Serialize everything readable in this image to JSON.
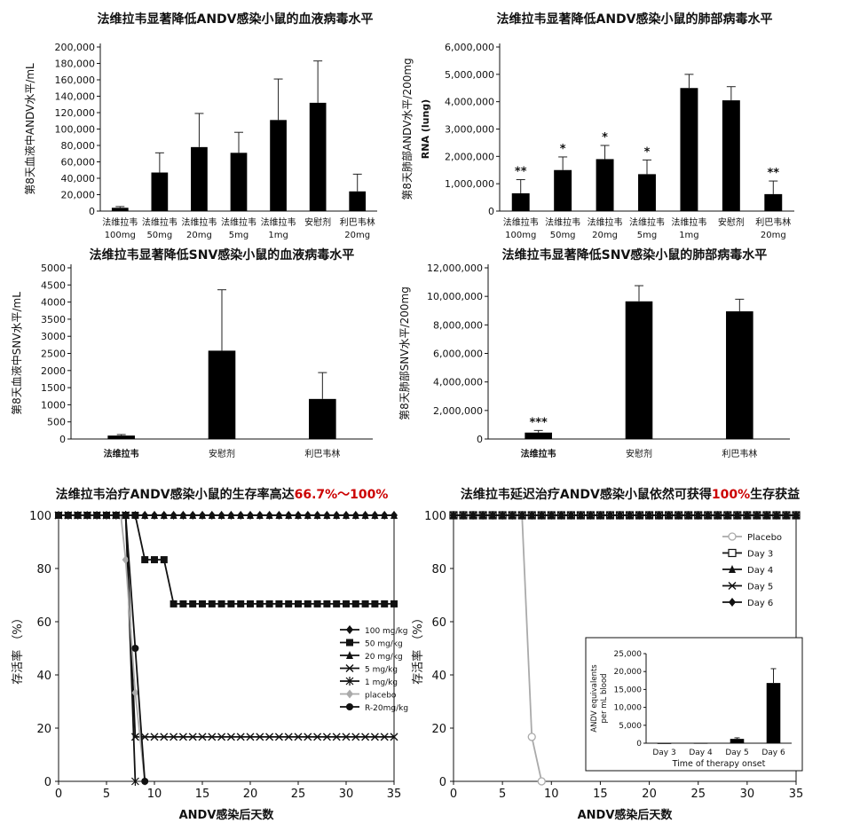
{
  "chart_data": [
    {
      "type": "bar",
      "title": "法维拉韦显著降低ANDV感染小鼠的血液病毒水平",
      "ylabel": "第8天血液中ANDV水平/mL",
      "ylim": [
        0,
        200000
      ],
      "yticks": [
        0,
        20000,
        40000,
        60000,
        80000,
        100000,
        120000,
        140000,
        160000,
        180000,
        200000
      ],
      "ytick_labels": [
        "0",
        "20,000",
        "40,000",
        "60,000",
        "80,000",
        "100,000",
        "120,000",
        "140,000",
        "160,000",
        "180,000",
        "200,000"
      ],
      "categories": [
        [
          "法维拉韦",
          "100mg"
        ],
        [
          "法维拉韦",
          "50mg"
        ],
        [
          "法维拉韦",
          "20mg"
        ],
        [
          "法维拉韦",
          "5mg"
        ],
        [
          "法维拉韦",
          "1mg"
        ],
        [
          "安慰剂",
          ""
        ],
        [
          "利巴韦林",
          "20mg"
        ]
      ],
      "values": [
        4000,
        47000,
        78000,
        71000,
        111000,
        132000,
        24000
      ],
      "errors": [
        1500,
        24000,
        41000,
        25000,
        50000,
        51000,
        21000
      ]
    },
    {
      "type": "bar",
      "title": "法维拉韦显著降低ANDV感染小鼠的肺部病毒水平",
      "ylabel": "第8天肺部ANDV水平/200mg",
      "ylabel2": "RNA (lung)",
      "ylim": [
        0,
        6000000
      ],
      "yticks": [
        0,
        1000000,
        2000000,
        3000000,
        4000000,
        5000000,
        6000000
      ],
      "ytick_labels": [
        "0",
        "1,000,000",
        "2,000,000",
        "3,000,000",
        "4,000,000",
        "5,000,000",
        "6,000,000"
      ],
      "categories": [
        [
          "法维拉韦",
          "100mg"
        ],
        [
          "法维拉韦",
          "50mg"
        ],
        [
          "法维拉韦",
          "20mg"
        ],
        [
          "法维拉韦",
          "5mg"
        ],
        [
          "法维拉韦",
          "1mg"
        ],
        [
          "安慰剂",
          ""
        ],
        [
          "利巴韦林",
          "20mg"
        ]
      ],
      "values": [
        650000,
        1500000,
        1900000,
        1350000,
        4500000,
        4050000,
        620000
      ],
      "errors": [
        500000,
        480000,
        500000,
        520000,
        500000,
        500000,
        480000
      ],
      "significance": [
        "**",
        "*",
        "*",
        "*",
        "",
        "",
        "**"
      ]
    },
    {
      "type": "bar",
      "title": "法维拉韦显著降低SNV感染小鼠的血液病毒水平",
      "ylabel": "第8天血液中SNV水平/mL",
      "ylim": [
        0,
        5000
      ],
      "yticks": [
        0,
        500,
        1000,
        1500,
        2000,
        2500,
        3000,
        3500,
        4000,
        4500,
        5000
      ],
      "ytick_labels": [
        "0",
        "500",
        "1000",
        "1500",
        "2000",
        "2500",
        "3000",
        "3500",
        "4000",
        "4500",
        "5000"
      ],
      "categories": [
        "法维拉韦",
        "安慰剂",
        "利巴韦林"
      ],
      "values": [
        100,
        2580,
        1170
      ],
      "errors": [
        30,
        1780,
        770
      ]
    },
    {
      "type": "bar",
      "title": "法维拉韦显著降低SNV感染小鼠的肺部病毒水平",
      "ylabel": "第8天肺部SNV水平/200mg",
      "ylim": [
        0,
        12000000
      ],
      "yticks": [
        0,
        2000000,
        4000000,
        6000000,
        8000000,
        10000000,
        12000000
      ],
      "ytick_labels": [
        "0",
        "2,000,000",
        "4,000,000",
        "6,000,000",
        "8,000,000",
        "10,000,000",
        "12,000,000"
      ],
      "categories": [
        "法维拉韦",
        "安慰剂",
        "利巴韦林"
      ],
      "values": [
        450000,
        9650000,
        8950000
      ],
      "errors": [
        150000,
        1100000,
        850000
      ],
      "significance": [
        "***",
        "",
        ""
      ]
    },
    {
      "type": "line",
      "title": "法维拉韦治疗ANDV感染小鼠的生存率高达",
      "title_highlight": "66.7%～100%",
      "highlight_color": "#cc0000",
      "xlabel": "ANDV感染后天数",
      "ylabel": "存活率 （%）",
      "xlim": [
        0,
        35
      ],
      "ylim": [
        0,
        100
      ],
      "xticks": [
        0,
        5,
        10,
        15,
        20,
        25,
        30,
        35
      ],
      "yticks": [
        0,
        20,
        40,
        60,
        80,
        100
      ],
      "legend_position": "right",
      "series": [
        {
          "name": "100 mg/kg",
          "marker": "diamond",
          "color": "#111111",
          "points": [
            [
              0,
              100
            ],
            [
              35,
              100
            ]
          ]
        },
        {
          "name": "50 mg/kg",
          "marker": "square",
          "color": "#111111",
          "points": [
            [
              0,
              100
            ],
            [
              8,
              100
            ],
            [
              9,
              83.3
            ],
            [
              11,
              83.3
            ],
            [
              12,
              66.7
            ],
            [
              35,
              66.7
            ]
          ]
        },
        {
          "name": "20 mg/kg",
          "marker": "triangle",
          "color": "#111111",
          "points": [
            [
              0,
              100
            ],
            [
              35,
              100
            ]
          ]
        },
        {
          "name": "5 mg/kg",
          "marker": "x",
          "color": "#111111",
          "points": [
            [
              0,
              100
            ],
            [
              7,
              100
            ],
            [
              8,
              16.7
            ],
            [
              35,
              16.7
            ]
          ]
        },
        {
          "name": "1 mg/kg",
          "marker": "star",
          "color": "#111111",
          "points": [
            [
              0,
              100
            ],
            [
              7,
              100
            ],
            [
              8,
              0
            ]
          ]
        },
        {
          "name": "placebo",
          "marker": "diamond",
          "color": "#aaaaaa",
          "points": [
            [
              0,
              100
            ],
            [
              6.5,
              100
            ],
            [
              7,
              83.3
            ],
            [
              8,
              33.3
            ],
            [
              9,
              0
            ]
          ]
        },
        {
          "name": "R-20mg/kg",
          "marker": "circle",
          "color": "#111111",
          "points": [
            [
              0,
              100
            ],
            [
              7,
              100
            ],
            [
              8,
              50
            ],
            [
              9,
              0
            ]
          ]
        }
      ]
    },
    {
      "type": "line",
      "title": "法维拉韦延迟治疗ANDV感染小鼠依然可获得",
      "title_highlight": "100%",
      "title_suffix": "生存获益",
      "highlight_color": "#cc0000",
      "xlabel": "ANDV感染后天数",
      "ylabel": "存活率 （%）",
      "xlim": [
        0,
        35
      ],
      "ylim": [
        0,
        100
      ],
      "xticks": [
        0,
        5,
        10,
        15,
        20,
        25,
        30,
        35
      ],
      "yticks": [
        0,
        20,
        40,
        60,
        80,
        100
      ],
      "legend_position": "top-right",
      "series": [
        {
          "name": "Placebo",
          "marker": "circle-open",
          "color": "#aaaaaa",
          "points": [
            [
              0,
              100
            ],
            [
              7,
              100
            ],
            [
              8,
              16.7
            ],
            [
              9,
              0
            ]
          ]
        },
        {
          "name": "Day 3",
          "marker": "square-open",
          "color": "#111111",
          "points": [
            [
              0,
              100
            ],
            [
              35,
              100
            ]
          ]
        },
        {
          "name": "Day 4",
          "marker": "triangle",
          "color": "#111111",
          "points": [
            [
              0,
              100
            ],
            [
              35,
              100
            ]
          ]
        },
        {
          "name": "Day 5",
          "marker": "x",
          "color": "#111111",
          "points": [
            [
              0,
              100
            ],
            [
              35,
              100
            ]
          ]
        },
        {
          "name": "Day 6",
          "marker": "diamond",
          "color": "#111111",
          "points": [
            [
              0,
              100
            ],
            [
              35,
              100
            ]
          ]
        }
      ],
      "inset": {
        "type": "bar",
        "ylabel": "ANDV equivalents per mL blood",
        "xlabel": "Time of therapy onset",
        "ylim": [
          0,
          25000
        ],
        "yticks": [
          0,
          5000,
          10000,
          15000,
          20000,
          25000
        ],
        "ytick_labels": [
          "0",
          "5,000",
          "10,000",
          "15,000",
          "20,000",
          "25,000"
        ],
        "categories": [
          "Day 3",
          "Day 4",
          "Day 5",
          "Day 6"
        ],
        "values": [
          0,
          50,
          1200,
          16800
        ],
        "errors": [
          0,
          0,
          300,
          4000
        ]
      }
    }
  ]
}
